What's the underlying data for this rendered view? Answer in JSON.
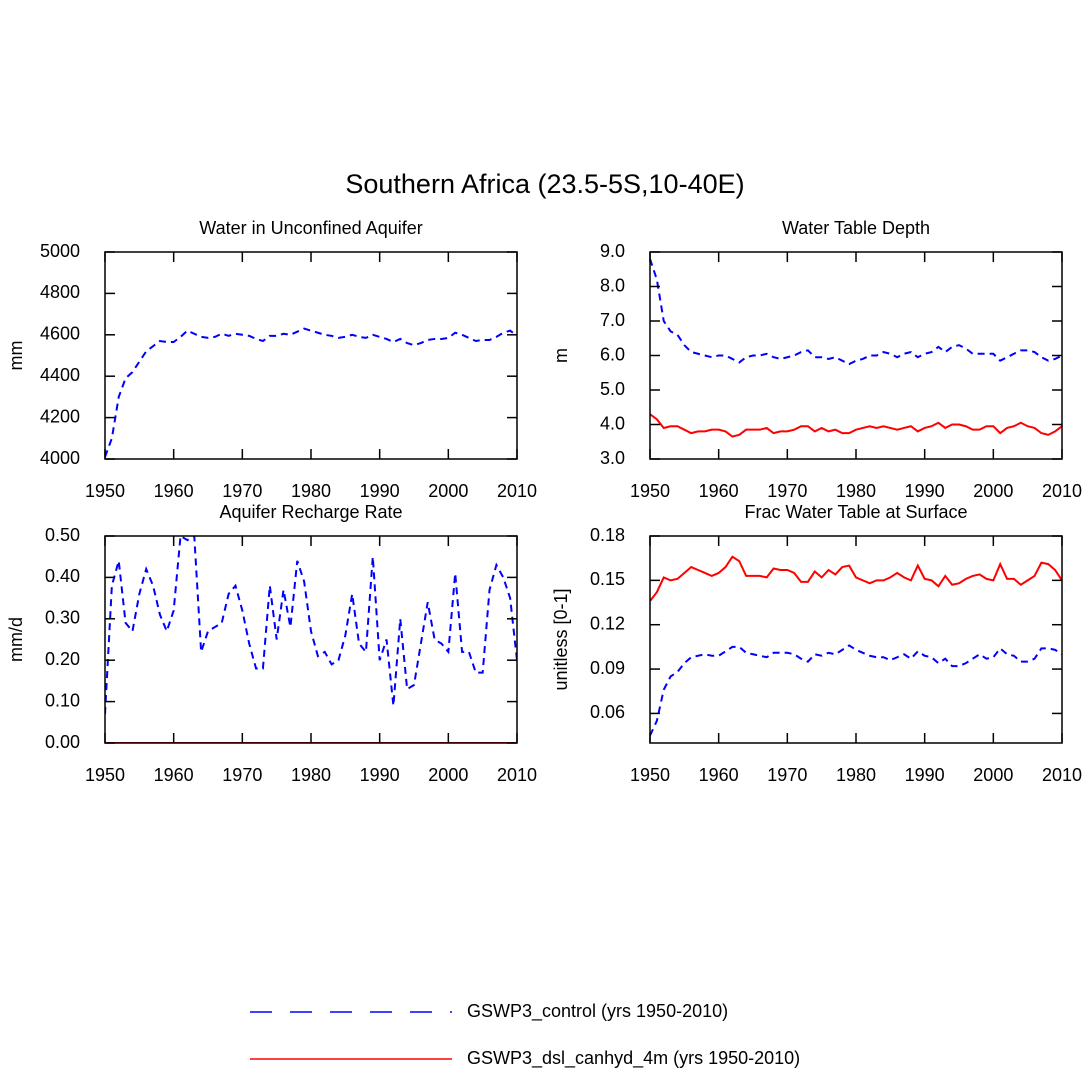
{
  "title": "Southern Africa (23.5-5S,10-40E)",
  "chart_data": [
    {
      "type": "line",
      "title": "Water in Unconfined Aquifer",
      "y_label": "mm",
      "x": [
        1950,
        1951,
        1952,
        1953,
        1954,
        1955,
        1956,
        1957,
        1958,
        1959,
        1960,
        1961,
        1962,
        1963,
        1964,
        1965,
        1966,
        1967,
        1968,
        1969,
        1970,
        1971,
        1972,
        1973,
        1974,
        1975,
        1976,
        1977,
        1978,
        1979,
        1980,
        1981,
        1982,
        1983,
        1984,
        1985,
        1986,
        1987,
        1988,
        1989,
        1990,
        1991,
        1992,
        1993,
        1994,
        1995,
        1996,
        1997,
        1998,
        1999,
        2000,
        2001,
        2002,
        2003,
        2004,
        2005,
        2006,
        2007,
        2008,
        2009,
        2010
      ],
      "series": [
        {
          "name": "GSWP3_control (yrs 1950-2010)",
          "color": "#0000ff",
          "dashed": true,
          "values": [
            4010,
            4100,
            4300,
            4390,
            4420,
            4470,
            4520,
            4545,
            4570,
            4565,
            4565,
            4590,
            4620,
            4605,
            4590,
            4585,
            4590,
            4605,
            4595,
            4605,
            4600,
            4595,
            4580,
            4570,
            4595,
            4595,
            4605,
            4600,
            4615,
            4630,
            4620,
            4610,
            4600,
            4595,
            4585,
            4590,
            4600,
            4590,
            4585,
            4600,
            4590,
            4580,
            4565,
            4580,
            4560,
            4550,
            4560,
            4575,
            4580,
            4580,
            4585,
            4610,
            4600,
            4585,
            4570,
            4575,
            4575,
            4590,
            4610,
            4620,
            4595
          ]
        }
      ],
      "xlim": [
        1950,
        2010
      ],
      "xticks": [
        1950,
        1960,
        1970,
        1980,
        1990,
        2000,
        2010
      ],
      "ylim": [
        4000,
        5000
      ],
      "yticks": [
        4000,
        4200,
        4400,
        4600,
        4800,
        5000
      ]
    },
    {
      "type": "line",
      "title": "Water Table Depth",
      "y_label": "m",
      "x": [
        1950,
        1951,
        1952,
        1953,
        1954,
        1955,
        1956,
        1957,
        1958,
        1959,
        1960,
        1961,
        1962,
        1963,
        1964,
        1965,
        1966,
        1967,
        1968,
        1969,
        1970,
        1971,
        1972,
        1973,
        1974,
        1975,
        1976,
        1977,
        1978,
        1979,
        1980,
        1981,
        1982,
        1983,
        1984,
        1985,
        1986,
        1987,
        1988,
        1989,
        1990,
        1991,
        1992,
        1993,
        1994,
        1995,
        1996,
        1997,
        1998,
        1999,
        2000,
        2001,
        2002,
        2003,
        2004,
        2005,
        2006,
        2007,
        2008,
        2009,
        2010
      ],
      "series": [
        {
          "name": "GSWP3_control (yrs 1950-2010)",
          "color": "#0000ff",
          "dashed": true,
          "values": [
            8.8,
            8.2,
            7.0,
            6.7,
            6.6,
            6.3,
            6.1,
            6.05,
            6.0,
            5.95,
            6.0,
            6.0,
            5.9,
            5.8,
            5.95,
            6.0,
            6.0,
            6.05,
            5.95,
            5.9,
            5.95,
            6.0,
            6.1,
            6.15,
            5.95,
            5.95,
            5.9,
            5.95,
            5.85,
            5.75,
            5.85,
            5.9,
            6.0,
            6.0,
            6.1,
            6.05,
            5.95,
            6.05,
            6.1,
            5.95,
            6.05,
            6.1,
            6.25,
            6.1,
            6.25,
            6.3,
            6.2,
            6.05,
            6.05,
            6.05,
            6.05,
            5.85,
            5.95,
            6.05,
            6.15,
            6.15,
            6.1,
            5.95,
            5.85,
            5.9,
            6.0
          ]
        },
        {
          "name": "GSWP3_dsl_canhyd_4m (yrs 1950-2010)",
          "color": "#ff0000",
          "dashed": false,
          "values": [
            4.3,
            4.15,
            3.9,
            3.95,
            3.95,
            3.85,
            3.75,
            3.8,
            3.8,
            3.85,
            3.85,
            3.8,
            3.65,
            3.7,
            3.85,
            3.85,
            3.85,
            3.9,
            3.75,
            3.8,
            3.8,
            3.85,
            3.95,
            3.95,
            3.8,
            3.9,
            3.8,
            3.85,
            3.75,
            3.75,
            3.85,
            3.9,
            3.95,
            3.9,
            3.95,
            3.9,
            3.85,
            3.9,
            3.95,
            3.8,
            3.9,
            3.95,
            4.05,
            3.9,
            4.0,
            4.0,
            3.95,
            3.85,
            3.85,
            3.95,
            3.95,
            3.75,
            3.9,
            3.95,
            4.05,
            3.95,
            3.9,
            3.75,
            3.7,
            3.8,
            3.95
          ]
        }
      ],
      "xlim": [
        1950,
        2010
      ],
      "xticks": [
        1950,
        1960,
        1970,
        1980,
        1990,
        2000,
        2010
      ],
      "ylim": [
        3,
        9
      ],
      "yticks": [
        {
          "value": 3,
          "label": "3.0"
        },
        {
          "value": 4,
          "label": "4.0"
        },
        {
          "value": 5,
          "label": "5.0"
        },
        {
          "value": 6,
          "label": "6.0"
        },
        {
          "value": 7,
          "label": "7.0"
        },
        {
          "value": 8,
          "label": "8.0"
        },
        {
          "value": 9,
          "label": "9.0"
        }
      ]
    },
    {
      "type": "line",
      "title": "Aquifer Recharge Rate",
      "y_label": "mm/d",
      "x": [
        1950,
        1951,
        1952,
        1953,
        1954,
        1955,
        1956,
        1957,
        1958,
        1959,
        1960,
        1961,
        1962,
        1963,
        1964,
        1965,
        1966,
        1967,
        1968,
        1969,
        1970,
        1971,
        1972,
        1973,
        1974,
        1975,
        1976,
        1977,
        1978,
        1979,
        1980,
        1981,
        1982,
        1983,
        1984,
        1985,
        1986,
        1987,
        1988,
        1989,
        1990,
        1991,
        1992,
        1993,
        1994,
        1995,
        1996,
        1997,
        1998,
        1999,
        2000,
        2001,
        2002,
        2003,
        2004,
        2005,
        2006,
        2007,
        2008,
        2009,
        2010
      ],
      "series": [
        {
          "name": "GSWP3_control (yrs 1950-2010)",
          "color": "#0000ff",
          "dashed": true,
          "values": [
            0.07,
            0.38,
            0.44,
            0.29,
            0.27,
            0.36,
            0.42,
            0.38,
            0.31,
            0.27,
            0.32,
            0.5,
            0.49,
            0.5,
            0.22,
            0.27,
            0.28,
            0.29,
            0.36,
            0.38,
            0.32,
            0.24,
            0.18,
            0.18,
            0.38,
            0.25,
            0.37,
            0.28,
            0.44,
            0.39,
            0.27,
            0.21,
            0.22,
            0.19,
            0.2,
            0.26,
            0.36,
            0.24,
            0.22,
            0.45,
            0.2,
            0.25,
            0.09,
            0.3,
            0.13,
            0.14,
            0.24,
            0.34,
            0.25,
            0.24,
            0.22,
            0.41,
            0.22,
            0.22,
            0.17,
            0.17,
            0.37,
            0.43,
            0.4,
            0.35,
            0.2
          ]
        },
        {
          "name": "GSWP3_dsl_canhyd_4m (yrs 1950-2010)",
          "color": "#ff0000",
          "dashed": false,
          "values": [
            0,
            0,
            0,
            0,
            0,
            0,
            0,
            0,
            0,
            0,
            0,
            0,
            0,
            0,
            0,
            0,
            0,
            0,
            0,
            0,
            0,
            0,
            0,
            0,
            0,
            0,
            0,
            0,
            0,
            0,
            0,
            0,
            0,
            0,
            0,
            0,
            0,
            0,
            0,
            0,
            0,
            0,
            0,
            0,
            0,
            0,
            0,
            0,
            0,
            0,
            0,
            0,
            0,
            0,
            0,
            0,
            0,
            0,
            0,
            0,
            0
          ]
        }
      ],
      "xlim": [
        1950,
        2010
      ],
      "xticks": [
        1950,
        1960,
        1970,
        1980,
        1990,
        2000,
        2010
      ],
      "ylim": [
        0,
        0.5
      ],
      "yticks": [
        {
          "value": 0,
          "label": "0.00"
        },
        {
          "value": 0.1,
          "label": "0.10"
        },
        {
          "value": 0.2,
          "label": "0.20"
        },
        {
          "value": 0.3,
          "label": "0.30"
        },
        {
          "value": 0.4,
          "label": "0.40"
        },
        {
          "value": 0.5,
          "label": "0.50"
        }
      ]
    },
    {
      "type": "line",
      "title": "Frac Water Table at Surface",
      "y_label": "unitless [0-1]",
      "x": [
        1950,
        1951,
        1952,
        1953,
        1954,
        1955,
        1956,
        1957,
        1958,
        1959,
        1960,
        1961,
        1962,
        1963,
        1964,
        1965,
        1966,
        1967,
        1968,
        1969,
        1970,
        1971,
        1972,
        1973,
        1974,
        1975,
        1976,
        1977,
        1978,
        1979,
        1980,
        1981,
        1982,
        1983,
        1984,
        1985,
        1986,
        1987,
        1988,
        1989,
        1990,
        1991,
        1992,
        1993,
        1994,
        1995,
        1996,
        1997,
        1998,
        1999,
        2000,
        2001,
        2002,
        2003,
        2004,
        2005,
        2006,
        2007,
        2008,
        2009,
        2010
      ],
      "series": [
        {
          "name": "GSWP3_control (yrs 1950-2010)",
          "color": "#0000ff",
          "dashed": true,
          "values": [
            0.045,
            0.055,
            0.076,
            0.085,
            0.088,
            0.094,
            0.098,
            0.099,
            0.1,
            0.099,
            0.099,
            0.102,
            0.105,
            0.105,
            0.101,
            0.1,
            0.099,
            0.098,
            0.101,
            0.101,
            0.101,
            0.1,
            0.097,
            0.095,
            0.1,
            0.099,
            0.101,
            0.1,
            0.103,
            0.106,
            0.103,
            0.101,
            0.099,
            0.098,
            0.098,
            0.096,
            0.098,
            0.1,
            0.097,
            0.102,
            0.099,
            0.098,
            0.094,
            0.097,
            0.092,
            0.092,
            0.094,
            0.097,
            0.1,
            0.097,
            0.098,
            0.104,
            0.1,
            0.099,
            0.095,
            0.095,
            0.097,
            0.104,
            0.104,
            0.103,
            0.1
          ]
        },
        {
          "name": "GSWP3_dsl_canhyd_4m (yrs 1950-2010)",
          "color": "#ff0000",
          "dashed": false,
          "values": [
            0.136,
            0.142,
            0.152,
            0.15,
            0.151,
            0.155,
            0.159,
            0.157,
            0.155,
            0.153,
            0.155,
            0.159,
            0.166,
            0.163,
            0.153,
            0.153,
            0.153,
            0.152,
            0.158,
            0.157,
            0.157,
            0.155,
            0.149,
            0.149,
            0.156,
            0.152,
            0.157,
            0.154,
            0.159,
            0.16,
            0.152,
            0.15,
            0.148,
            0.15,
            0.15,
            0.152,
            0.155,
            0.152,
            0.15,
            0.16,
            0.151,
            0.15,
            0.146,
            0.153,
            0.147,
            0.148,
            0.151,
            0.153,
            0.154,
            0.151,
            0.15,
            0.161,
            0.151,
            0.151,
            0.147,
            0.15,
            0.153,
            0.162,
            0.161,
            0.157,
            0.15
          ]
        }
      ],
      "xlim": [
        1950,
        2010
      ],
      "xticks": [
        1950,
        1960,
        1970,
        1980,
        1990,
        2000,
        2010
      ],
      "ylim": [
        0.04,
        0.18
      ],
      "yticks": [
        0.06,
        0.09,
        0.12,
        0.15,
        0.18
      ]
    }
  ]
}
